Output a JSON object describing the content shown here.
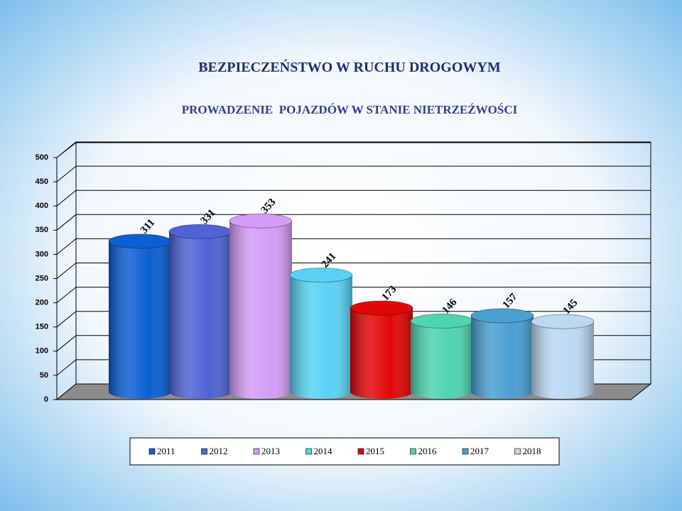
{
  "chart_data": {
    "type": "bar",
    "title": "BEZPIECZEŃSTWO W RUCHU DROGOWYM",
    "subtitle": "PROWADZENIE  POJAZDÓW W STANIE NIETRZEŹWOŚCI",
    "categories": [
      "2011",
      "2012",
      "2013",
      "2014",
      "2015",
      "2016",
      "2017",
      "2018"
    ],
    "values": [
      311,
      331,
      353,
      241,
      173,
      146,
      157,
      145
    ],
    "colors": [
      "#0b5fd4",
      "#4f62d6",
      "#d49cf7",
      "#58d2f4",
      "#e20606",
      "#4fd4b0",
      "#4a9fd2",
      "#bcd8f2"
    ],
    "ylim": [
      0,
      500
    ],
    "yticks": [
      0,
      50,
      100,
      150,
      200,
      250,
      300,
      350,
      400,
      450,
      500
    ],
    "grid": true
  }
}
